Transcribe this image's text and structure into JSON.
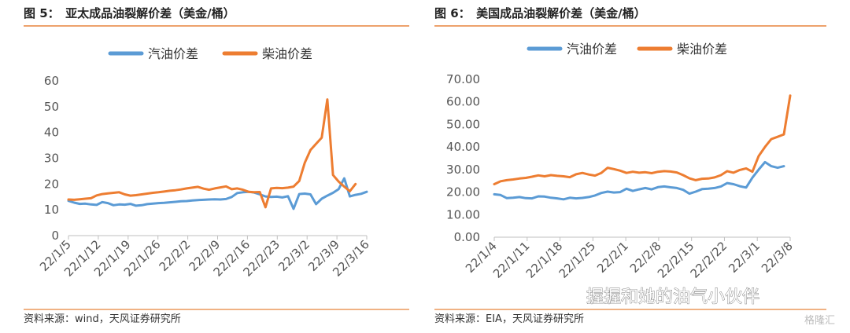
{
  "chart_data": [
    {
      "type": "line",
      "title": "图 5：　亚太成品油裂解价差（美金/桶）",
      "source": "资料来源：wind，天风证券研究所",
      "ylim": [
        0,
        60
      ],
      "yticks": [
        "0",
        "10",
        "20",
        "30",
        "40",
        "50",
        "60"
      ],
      "xtick_labels": [
        "22/1/5",
        "22/1/12",
        "22/1/19",
        "22/1/26",
        "22/2/2",
        "22/2/9",
        "22/2/16",
        "22/2/23",
        "22/3/2",
        "22/3/9",
        "22/3/16"
      ],
      "legend_position": "top",
      "series": [
        {
          "name": "汽油价差",
          "color": "#5B9BD5",
          "points": [
            [
              0,
              13.5
            ],
            [
              1,
              12.8
            ],
            [
              2,
              12.3
            ],
            [
              3,
              12.4
            ],
            [
              4,
              12.1
            ],
            [
              5,
              11.9
            ],
            [
              6,
              13.0
            ],
            [
              7,
              12.6
            ],
            [
              8,
              11.8
            ],
            [
              9,
              12.1
            ],
            [
              10,
              12.0
            ],
            [
              11,
              12.3
            ],
            [
              12,
              11.6
            ],
            [
              13,
              11.8
            ],
            [
              14,
              12.2
            ],
            [
              15,
              12.4
            ],
            [
              16,
              12.6
            ],
            [
              17,
              12.7
            ],
            [
              18,
              12.9
            ],
            [
              19,
              13.1
            ],
            [
              20,
              13.3
            ],
            [
              21,
              13.4
            ],
            [
              22,
              13.6
            ],
            [
              23,
              13.8
            ],
            [
              24,
              13.9
            ],
            [
              25,
              14.0
            ],
            [
              26,
              14.1
            ],
            [
              27,
              14.0
            ],
            [
              28,
              14.2
            ],
            [
              29,
              15.0
            ],
            [
              30,
              16.5
            ],
            [
              31,
              16.8
            ],
            [
              32,
              17.0
            ],
            [
              33,
              16.7
            ],
            [
              34,
              16.0
            ],
            [
              35,
              15.2
            ],
            [
              36,
              15.0
            ],
            [
              37,
              15.1
            ],
            [
              38,
              14.8
            ],
            [
              39,
              15.3
            ],
            [
              40,
              10.4
            ],
            [
              41,
              16.1
            ],
            [
              42,
              16.3
            ],
            [
              43,
              16.0
            ],
            [
              44,
              12.2
            ],
            [
              45,
              14.3
            ],
            [
              46,
              15.5
            ],
            [
              47,
              16.6
            ],
            [
              48,
              18.0
            ],
            [
              49,
              22.2
            ],
            [
              50,
              15.2
            ],
            [
              51,
              15.8
            ],
            [
              52,
              16.2
            ],
            [
              53,
              17.0
            ]
          ]
        },
        {
          "name": "柴油价差",
          "color": "#ED7D31",
          "points": [
            [
              0,
              14.0
            ],
            [
              1,
              13.9
            ],
            [
              2,
              14.1
            ],
            [
              3,
              14.3
            ],
            [
              4,
              14.5
            ],
            [
              5,
              15.6
            ],
            [
              6,
              16.1
            ],
            [
              7,
              16.4
            ],
            [
              8,
              16.6
            ],
            [
              9,
              16.8
            ],
            [
              10,
              16.0
            ],
            [
              11,
              15.5
            ],
            [
              12,
              15.7
            ],
            [
              13,
              16.0
            ],
            [
              14,
              16.3
            ],
            [
              15,
              16.6
            ],
            [
              16,
              16.8
            ],
            [
              17,
              17.1
            ],
            [
              18,
              17.4
            ],
            [
              19,
              17.6
            ],
            [
              20,
              17.9
            ],
            [
              21,
              18.3
            ],
            [
              22,
              18.6
            ],
            [
              23,
              18.9
            ],
            [
              24,
              18.2
            ],
            [
              25,
              17.8
            ],
            [
              26,
              18.3
            ],
            [
              27,
              18.7
            ],
            [
              28,
              19.1
            ],
            [
              29,
              18.0
            ],
            [
              30,
              18.3
            ],
            [
              31,
              17.8
            ],
            [
              32,
              17.0
            ],
            [
              33,
              16.8
            ],
            [
              34,
              16.9
            ],
            [
              35,
              11.0
            ],
            [
              36,
              18.3
            ],
            [
              37,
              18.5
            ],
            [
              38,
              18.4
            ],
            [
              39,
              18.6
            ],
            [
              40,
              19.0
            ],
            [
              41,
              21.2
            ],
            [
              42,
              28.3
            ],
            [
              43,
              33.2
            ],
            [
              44,
              35.6
            ],
            [
              45,
              38.0
            ],
            [
              46,
              52.8
            ],
            [
              47,
              23.5
            ],
            [
              48,
              21.0
            ],
            [
              49,
              19.0
            ],
            [
              50,
              17.2
            ],
            [
              51,
              20.0
            ]
          ]
        }
      ]
    },
    {
      "type": "line",
      "title": "图 6：　美国成品油裂解价差（美金/桶）",
      "source": "资料来源：EIA，天风证券研究所",
      "ylim": [
        0,
        70
      ],
      "yticks": [
        "0.00",
        "10.00",
        "20.00",
        "30.00",
        "40.00",
        "50.00",
        "60.00",
        "70.00"
      ],
      "xtick_labels": [
        "22/1/4",
        "22/1/11",
        "22/1/18",
        "22/1/25",
        "22/2/1",
        "22/2/8",
        "22/2/15",
        "22/2/22",
        "22/3/1",
        "22/3/8"
      ],
      "legend_position": "top",
      "series": [
        {
          "name": "汽油价差",
          "color": "#5B9BD5",
          "points": [
            [
              0,
              19.0
            ],
            [
              1,
              18.7
            ],
            [
              2,
              17.3
            ],
            [
              3,
              17.5
            ],
            [
              4,
              17.8
            ],
            [
              5,
              17.3
            ],
            [
              6,
              17.2
            ],
            [
              7,
              18.1
            ],
            [
              8,
              18.0
            ],
            [
              9,
              17.5
            ],
            [
              10,
              17.2
            ],
            [
              11,
              16.8
            ],
            [
              12,
              17.5
            ],
            [
              13,
              17.2
            ],
            [
              14,
              17.4
            ],
            [
              15,
              17.8
            ],
            [
              16,
              18.5
            ],
            [
              17,
              19.6
            ],
            [
              18,
              20.2
            ],
            [
              19,
              19.8
            ],
            [
              20,
              20.0
            ],
            [
              21,
              21.5
            ],
            [
              22,
              20.5
            ],
            [
              23,
              21.2
            ],
            [
              24,
              21.8
            ],
            [
              25,
              21.2
            ],
            [
              26,
              22.2
            ],
            [
              27,
              22.5
            ],
            [
              28,
              22.1
            ],
            [
              29,
              21.8
            ],
            [
              30,
              21.0
            ],
            [
              31,
              19.3
            ],
            [
              32,
              20.2
            ],
            [
              33,
              21.3
            ],
            [
              34,
              21.5
            ],
            [
              35,
              21.8
            ],
            [
              36,
              22.5
            ],
            [
              37,
              24.0
            ],
            [
              38,
              23.5
            ],
            [
              39,
              22.6
            ],
            [
              40,
              22.0
            ],
            [
              41,
              26.4
            ],
            [
              42,
              30.0
            ],
            [
              43,
              33.3
            ],
            [
              44,
              31.5
            ],
            [
              45,
              30.8
            ],
            [
              46,
              31.5
            ]
          ]
        },
        {
          "name": "柴油价差",
          "color": "#ED7D31",
          "points": [
            [
              0,
              23.5
            ],
            [
              1,
              24.8
            ],
            [
              2,
              25.3
            ],
            [
              3,
              25.6
            ],
            [
              4,
              26.0
            ],
            [
              5,
              26.3
            ],
            [
              6,
              26.8
            ],
            [
              7,
              27.4
            ],
            [
              8,
              27.0
            ],
            [
              9,
              27.5
            ],
            [
              10,
              27.2
            ],
            [
              11,
              27.0
            ],
            [
              12,
              26.6
            ],
            [
              13,
              27.9
            ],
            [
              14,
              28.5
            ],
            [
              15,
              27.8
            ],
            [
              16,
              27.3
            ],
            [
              17,
              28.5
            ],
            [
              18,
              30.8
            ],
            [
              19,
              30.2
            ],
            [
              20,
              29.5
            ],
            [
              21,
              28.5
            ],
            [
              22,
              29.0
            ],
            [
              23,
              28.6
            ],
            [
              24,
              28.8
            ],
            [
              25,
              28.4
            ],
            [
              26,
              29.0
            ],
            [
              27,
              29.3
            ],
            [
              28,
              29.1
            ],
            [
              29,
              28.7
            ],
            [
              30,
              27.5
            ],
            [
              31,
              26.1
            ],
            [
              32,
              25.3
            ],
            [
              33,
              25.9
            ],
            [
              34,
              26.0
            ],
            [
              35,
              26.5
            ],
            [
              36,
              27.5
            ],
            [
              37,
              29.3
            ],
            [
              38,
              28.6
            ],
            [
              39,
              29.8
            ],
            [
              40,
              30.5
            ],
            [
              41,
              29.0
            ],
            [
              42,
              36.0
            ],
            [
              43,
              40.0
            ],
            [
              44,
              43.5
            ],
            [
              45,
              44.5
            ],
            [
              46,
              45.6
            ],
            [
              47,
              62.8
            ]
          ]
        }
      ]
    }
  ],
  "watermark": {
    "text": "握握和她的油气小伙伴",
    "brand": "格隆汇"
  }
}
